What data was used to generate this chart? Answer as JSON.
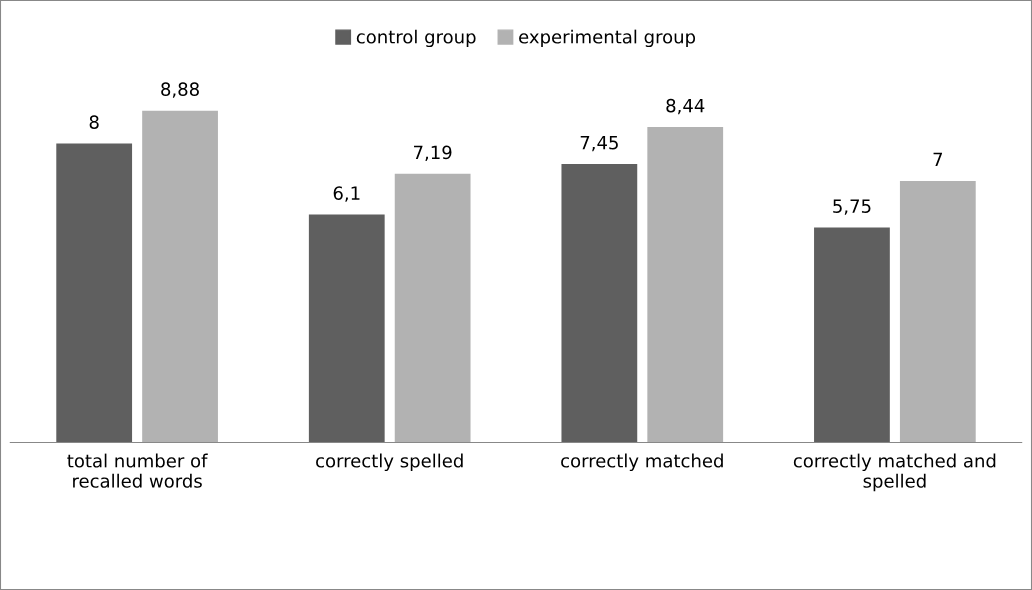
{
  "chart_data": {
    "type": "bar",
    "categories": [
      "total number of\nrecalled words",
      "correctly spelled",
      "correctly matched",
      "correctly matched and\nspelled"
    ],
    "series": [
      {
        "name": "control group",
        "color": "#5f5f5f",
        "values": [
          8,
          6.1,
          7.45,
          5.75
        ],
        "value_labels": [
          "8",
          "6,1",
          "7,45",
          "5,75"
        ]
      },
      {
        "name": "experimental group",
        "color": "#b2b2b2",
        "values": [
          8.88,
          7.19,
          8.44,
          7
        ],
        "value_labels": [
          "8,88",
          "7,19",
          "8,44",
          "7"
        ]
      }
    ],
    "legend": "top"
  }
}
